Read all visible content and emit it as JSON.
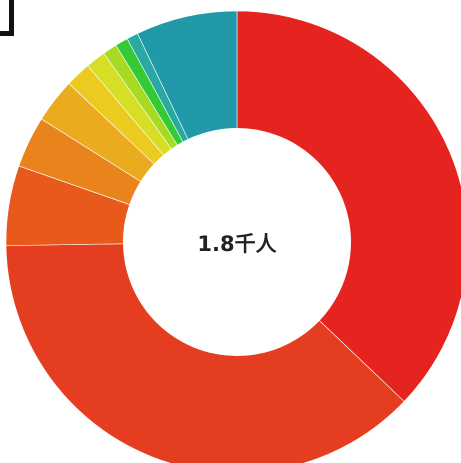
{
  "chart_data": {
    "type": "pie",
    "center_label": "1.8千人",
    "values": [
      37.2,
      37.7,
      5.6,
      3.6,
      3.1,
      1.8,
      1.4,
      1.0,
      0.9,
      0.8,
      7.1
    ],
    "colors": [
      "#e52420",
      "#e53d1f",
      "#e85a1c",
      "#e9831c",
      "#eaac1e",
      "#eccb20",
      "#d6df26",
      "#a8da24",
      "#34c936",
      "#2aa9a3",
      "#2199a8"
    ],
    "start_angle_deg": 0,
    "direction": "clockwise",
    "legend": "none"
  }
}
